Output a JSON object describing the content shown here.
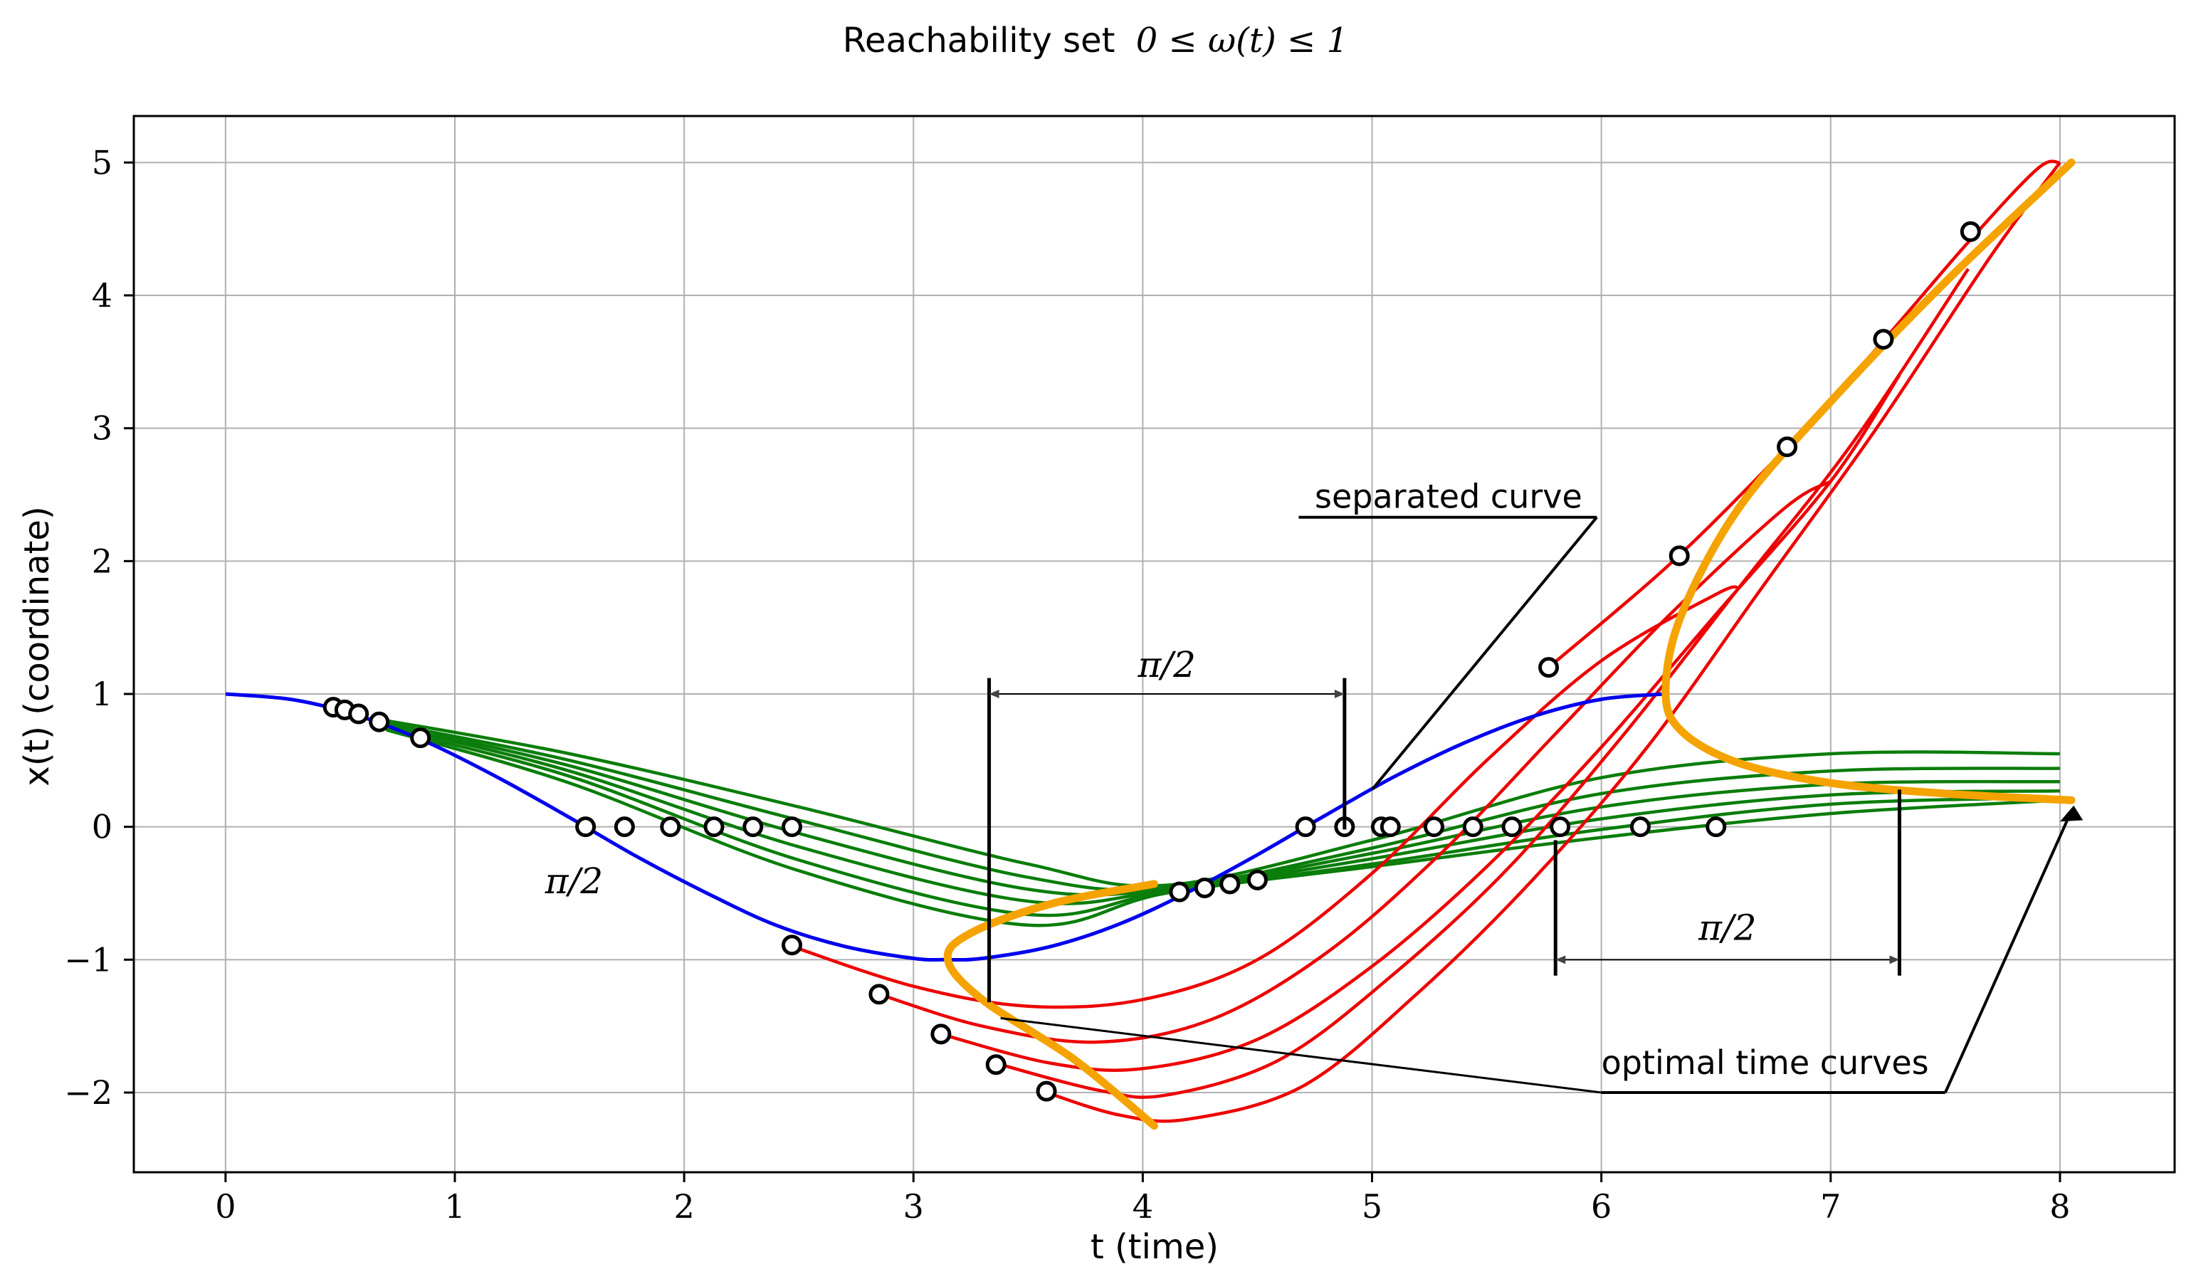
{
  "chart_data": {
    "type": "line",
    "title": "Reachability set",
    "title_math": "0 ≤ ω(t) ≤ 1",
    "xlabel": "t (time)",
    "ylabel": "x(t) (coordinate)",
    "xlim": [
      -0.4,
      8.5
    ],
    "ylim": [
      -2.6,
      5.35
    ],
    "xticks": [
      0,
      1,
      2,
      3,
      4,
      5,
      6,
      7,
      8
    ],
    "yticks": [
      -2,
      -1,
      0,
      1,
      2,
      3,
      4,
      5
    ],
    "xtick_labels": [
      "0",
      "1",
      "2",
      "3",
      "4",
      "5",
      "6",
      "7",
      "8"
    ],
    "ytick_labels": [
      "−2",
      "−1",
      "0",
      "1",
      "2",
      "3",
      "4",
      "5"
    ],
    "grid": true,
    "colors": {
      "blue": "#0000ee",
      "red": "#ee0000",
      "green": "#0a7d0a",
      "orange": "#f5a300",
      "marker_fill": "#ffffff",
      "annotation": "#000000",
      "grid": "#b0b0b0"
    },
    "blue_curve": {
      "x": [
        0,
        0.3,
        0.6,
        0.9,
        1.2,
        1.5,
        1.8,
        2.1,
        2.4,
        2.7,
        3.0,
        3.14,
        3.3,
        3.6,
        3.9,
        4.2,
        4.5,
        4.8,
        5.1,
        5.4,
        5.7,
        6.0,
        6.28
      ],
      "y": [
        1.0,
        0.955,
        0.825,
        0.62,
        0.36,
        0.07,
        -0.23,
        -0.5,
        -0.74,
        -0.9,
        -0.99,
        -1.0,
        -0.99,
        -0.9,
        -0.73,
        -0.49,
        -0.21,
        0.09,
        0.38,
        0.63,
        0.83,
        0.96,
        1.0
      ]
    },
    "green_curves": [
      {
        "x": [
          0.7,
          1.5,
          2.5,
          3.5,
          4.1,
          5.0,
          6.0,
          7.0,
          8.0
        ],
        "y": [
          0.8,
          0.55,
          0.15,
          -0.28,
          -0.44,
          -0.1,
          0.37,
          0.55,
          0.55
        ]
      },
      {
        "x": [
          0.7,
          1.5,
          2.5,
          3.5,
          4.1,
          5.0,
          6.0,
          7.0,
          8.0
        ],
        "y": [
          0.78,
          0.5,
          0.05,
          -0.38,
          -0.46,
          -0.16,
          0.25,
          0.42,
          0.44
        ]
      },
      {
        "x": [
          0.7,
          1.5,
          2.5,
          3.5,
          4.1,
          5.0,
          6.0,
          7.0,
          8.0
        ],
        "y": [
          0.77,
          0.46,
          -0.05,
          -0.47,
          -0.47,
          -0.2,
          0.15,
          0.32,
          0.34
        ]
      },
      {
        "x": [
          0.7,
          1.5,
          2.5,
          3.5,
          4.1,
          5.0,
          6.0,
          7.0,
          8.0
        ],
        "y": [
          0.76,
          0.42,
          -0.15,
          -0.56,
          -0.48,
          -0.24,
          0.06,
          0.24,
          0.27
        ]
      },
      {
        "x": [
          0.7,
          1.5,
          2.5,
          3.5,
          4.1,
          5.0,
          6.0,
          7.0,
          8.0
        ],
        "y": [
          0.74,
          0.38,
          -0.25,
          -0.66,
          -0.49,
          -0.28,
          -0.02,
          0.17,
          0.22
        ]
      },
      {
        "x": [
          0.7,
          1.5,
          2.5,
          3.5,
          4.1,
          5.0,
          6.0,
          7.0,
          8.0
        ],
        "y": [
          0.73,
          0.33,
          -0.33,
          -0.74,
          -0.5,
          -0.3,
          -0.08,
          0.1,
          0.2
        ]
      }
    ],
    "red_curves": [
      {
        "x": [
          2.47,
          3.0,
          3.5,
          4.0,
          4.5,
          5.0,
          5.5,
          6.0,
          6.5,
          6.6
        ],
        "y": [
          -0.9,
          -1.2,
          -1.35,
          -1.3,
          -1.0,
          -0.35,
          0.5,
          1.25,
          1.75,
          1.8
        ]
      },
      {
        "x": [
          2.85,
          3.3,
          3.8,
          4.3,
          4.8,
          5.3,
          5.8,
          6.3,
          6.8,
          7.0
        ],
        "y": [
          -1.26,
          -1.5,
          -1.62,
          -1.45,
          -0.95,
          -0.2,
          0.7,
          1.6,
          2.4,
          2.6
        ]
      },
      {
        "x": [
          3.12,
          3.6,
          4.0,
          4.5,
          5.0,
          5.5,
          6.0,
          6.5,
          7.0,
          7.3
        ],
        "y": [
          -1.56,
          -1.78,
          -1.82,
          -1.6,
          -1.05,
          -0.3,
          0.6,
          1.6,
          2.6,
          3.4
        ]
      },
      {
        "x": [
          3.36,
          3.8,
          4.1,
          4.6,
          5.1,
          5.6,
          6.1,
          6.6,
          7.1,
          7.6
        ],
        "y": [
          -1.78,
          -1.98,
          -2.02,
          -1.75,
          -1.1,
          -0.3,
          0.7,
          1.8,
          2.9,
          4.2
        ]
      },
      {
        "x": [
          3.58,
          3.9,
          4.2,
          4.7,
          5.2,
          5.7,
          6.2,
          6.7,
          7.2,
          7.7,
          8.0
        ],
        "y": [
          -2.0,
          -2.17,
          -2.2,
          -1.95,
          -1.25,
          -0.4,
          0.6,
          1.8,
          3.0,
          4.3,
          5.0
        ]
      },
      {
        "x": [
          5.77,
          6.3,
          6.8,
          7.2,
          7.6,
          7.9,
          8.0
        ],
        "y": [
          1.2,
          1.98,
          2.84,
          3.6,
          4.4,
          4.95,
          5.0
        ]
      }
    ],
    "orange_curves": [
      {
        "x": [
          4.05,
          3.6,
          3.25,
          3.15,
          3.3,
          3.7,
          4.05
        ],
        "y": [
          -0.43,
          -0.58,
          -0.8,
          -1.0,
          -1.3,
          -1.75,
          -2.25
        ]
      },
      {
        "x": [
          8.05,
          7.5,
          7.0,
          6.6,
          6.35,
          6.28,
          6.35,
          6.6,
          7.0,
          7.5,
          8.05
        ],
        "y": [
          5.0,
          4.1,
          3.2,
          2.4,
          1.6,
          1.02,
          0.72,
          0.48,
          0.33,
          0.25,
          0.2
        ]
      }
    ],
    "markers": [
      [
        0.47,
        0.9
      ],
      [
        0.52,
        0.88
      ],
      [
        0.58,
        0.85
      ],
      [
        0.67,
        0.79
      ],
      [
        0.85,
        0.67
      ],
      [
        1.57,
        0.0
      ],
      [
        1.74,
        0.0
      ],
      [
        1.94,
        0.0
      ],
      [
        2.13,
        0.0
      ],
      [
        2.3,
        0.0
      ],
      [
        2.47,
        0.0
      ],
      [
        2.47,
        -0.89
      ],
      [
        2.85,
        -1.26
      ],
      [
        3.12,
        -1.56
      ],
      [
        3.36,
        -1.79
      ],
      [
        3.58,
        -1.99
      ],
      [
        4.16,
        -0.49
      ],
      [
        4.27,
        -0.46
      ],
      [
        4.38,
        -0.43
      ],
      [
        4.5,
        -0.4
      ],
      [
        4.71,
        0.0
      ],
      [
        4.88,
        0.0
      ],
      [
        5.04,
        0.0
      ],
      [
        5.08,
        0.0
      ],
      [
        5.27,
        0.0
      ],
      [
        5.44,
        0.0
      ],
      [
        5.61,
        0.0
      ],
      [
        5.82,
        0.0
      ],
      [
        6.17,
        0.0
      ],
      [
        6.5,
        0.0
      ],
      [
        5.77,
        1.2
      ],
      [
        6.34,
        2.04
      ],
      [
        6.81,
        2.86
      ],
      [
        7.23,
        3.67
      ],
      [
        7.61,
        4.48
      ]
    ],
    "annotations": {
      "separated_curve": "separated curve",
      "optimal_time_curves": "optimal time curves",
      "pi_half": "π/2"
    }
  }
}
